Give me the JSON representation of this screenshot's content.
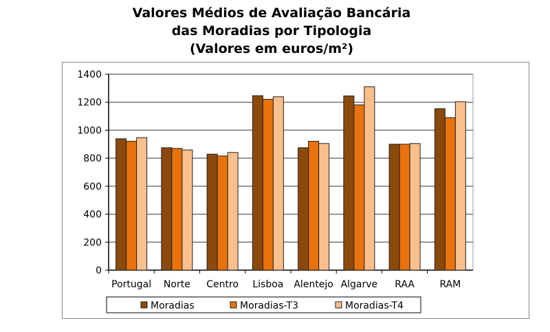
{
  "chart_data": {
    "type": "bar",
    "title": [
      "Valores Médios de Avaliação Bancária",
      "das Moradias por Tipologia",
      "(Valores em euros/m²)"
    ],
    "categories": [
      "Portugal",
      "Norte",
      "Centro",
      "Lisboa",
      "Alentejo",
      "Algarve",
      "RAA",
      "RAM"
    ],
    "series": [
      {
        "name": "Moradias",
        "color": "#8B4A0C",
        "values": [
          939,
          875,
          829,
          1247,
          875,
          1245,
          900,
          1154
        ]
      },
      {
        "name": "Moradias-T3",
        "color": "#E8720C",
        "values": [
          921,
          870,
          816,
          1221,
          921,
          1181,
          900,
          1090
        ]
      },
      {
        "name": "Moradias-T4",
        "color": "#F9BF8C",
        "values": [
          947,
          859,
          841,
          1239,
          905,
          1311,
          905,
          1204
        ]
      }
    ],
    "ylim": [
      0,
      1400
    ],
    "yticks": [
      0,
      200,
      400,
      600,
      800,
      1000,
      1200,
      1400
    ],
    "grid": true,
    "legend": "bottom"
  }
}
